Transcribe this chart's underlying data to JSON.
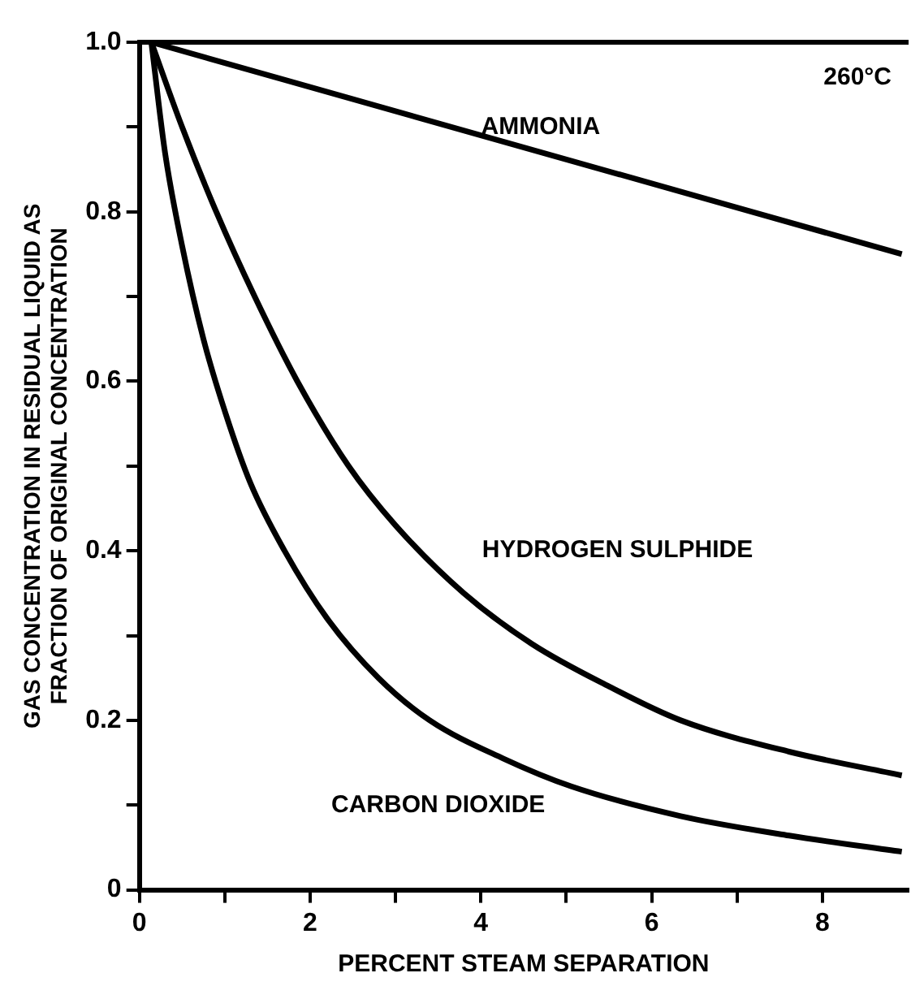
{
  "chart_data": {
    "type": "line",
    "xlabel": "PERCENT STEAM SEPARATION",
    "ylabel": "GAS CONCENTRATION IN RESIDUAL LIQUID AS\nFRACTION OF ORIGINAL CONCENTRATION",
    "annotations": [
      "260°C"
    ],
    "xlim": [
      0,
      9
    ],
    "xticks": [
      0,
      {
        "value": 1,
        "label": null
      },
      2,
      {
        "value": 3,
        "label": null
      },
      4,
      {
        "value": 5,
        "label": null
      },
      6,
      {
        "value": 7,
        "label": null
      },
      8
    ],
    "ylim": [
      0,
      1
    ],
    "yticks": [
      0,
      {
        "value": 0.1,
        "label": null
      },
      0.2,
      {
        "value": 0.3,
        "label": null
      },
      0.4,
      {
        "value": 0.5,
        "label": null
      },
      0.6,
      {
        "value": 0.7,
        "label": null
      },
      0.8,
      {
        "value": 0.9,
        "label": null
      },
      {
        "value": 1,
        "label": "1.0"
      }
    ],
    "grid": false,
    "legend": false,
    "marker": "none",
    "line_style": "solid",
    "series": [
      {
        "name": "AMMONIA",
        "color": "#000000",
        "x": [
          0.14,
          8.93
        ],
        "values": [
          1.0,
          0.75
        ]
      },
      {
        "name": "HYDROGEN SULPHIDE",
        "color": "#000000",
        "x": [
          0.14,
          0.5,
          0.9,
          1.35,
          1.85,
          2.45,
          3.0,
          3.8,
          4.6,
          5.5,
          6.34,
          7.61,
          8.93
        ],
        "values": [
          1.0,
          0.9,
          0.8,
          0.7,
          0.6,
          0.5,
          0.43,
          0.35,
          0.29,
          0.24,
          0.2,
          0.163,
          0.135
        ]
      },
      {
        "name": "CARBON DIOXIDE",
        "color": "#000000",
        "x": [
          0.14,
          0.3,
          0.5,
          0.75,
          1.0,
          1.3,
          1.7,
          2.2,
          2.8,
          3.4,
          4.26,
          5.06,
          6.34,
          7.61,
          8.93
        ],
        "values": [
          1.0,
          0.87,
          0.76,
          0.65,
          0.565,
          0.48,
          0.4,
          0.32,
          0.25,
          0.2,
          0.155,
          0.122,
          0.087,
          0.064,
          0.045
        ]
      }
    ]
  }
}
